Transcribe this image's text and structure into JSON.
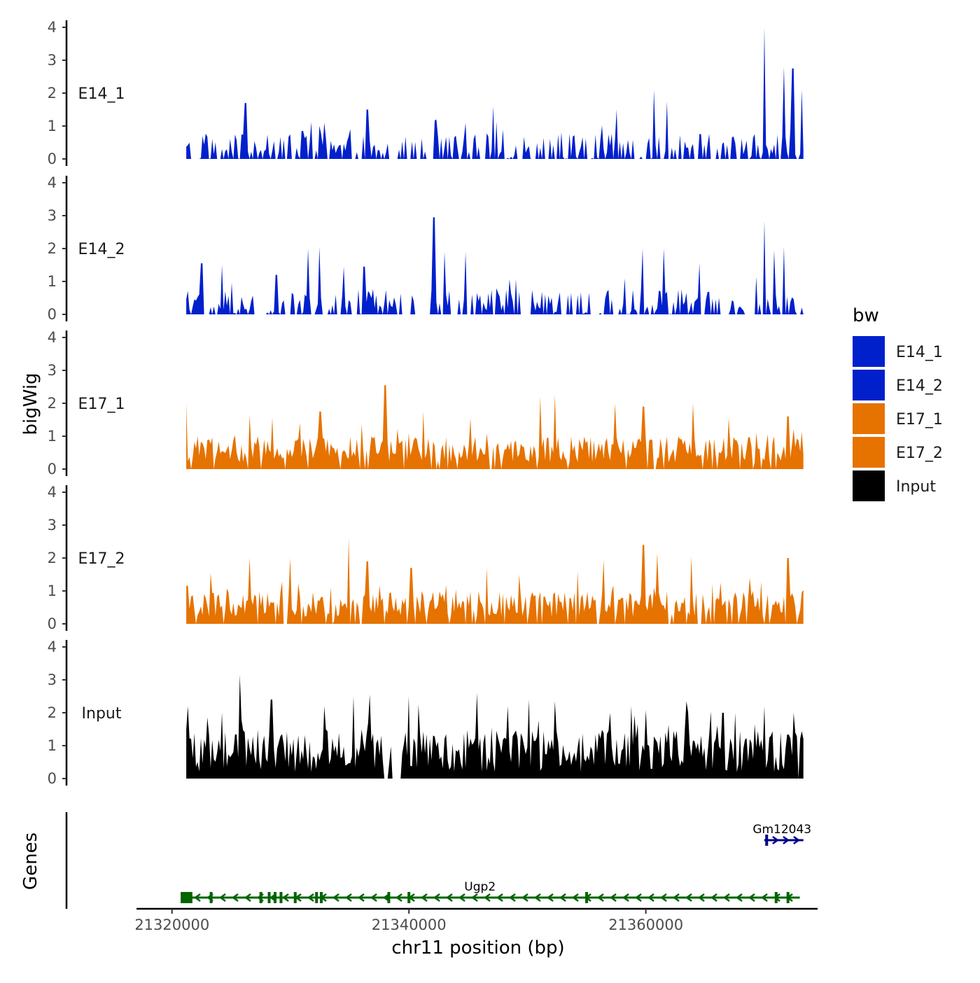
{
  "chart_data": {
    "type": "area",
    "chromosome": "chr11",
    "xlabel": "chr11 position (bp)",
    "ylabel": "bigWig",
    "genes_label": "Genes",
    "xlim": [
      21317000,
      21374500
    ],
    "ylim": [
      0,
      4
    ],
    "x_ticks": [
      21320000,
      21340000,
      21360000
    ],
    "x_tick_labels": [
      "21320000",
      "21340000",
      "21360000"
    ],
    "y_ticks": [
      0,
      1,
      2,
      3,
      4
    ],
    "y_tick_labels": [
      "0",
      "1",
      "2",
      "3",
      "4"
    ],
    "legend": {
      "title": "bw",
      "entries": [
        {
          "label": "E14_1",
          "color": "#0020CC"
        },
        {
          "label": "E14_2",
          "color": "#0020CC"
        },
        {
          "label": "E17_1",
          "color": "#E67300"
        },
        {
          "label": "E17_2",
          "color": "#E67300"
        },
        {
          "label": "Input",
          "color": "#000000"
        }
      ]
    },
    "series": [
      {
        "name": "E14_1",
        "color": "#0020CC",
        "x_start": 21321200,
        "x_end": 21373300,
        "peaks": [
          [
            21326200,
            1.7
          ],
          [
            21331000,
            0.85
          ],
          [
            21332800,
            1.1
          ],
          [
            21336500,
            1.5
          ],
          [
            21342300,
            1.2
          ],
          [
            21347100,
            1.6
          ],
          [
            21357500,
            1.5
          ],
          [
            21360700,
            2.1
          ],
          [
            21361800,
            1.75
          ],
          [
            21370000,
            4.0
          ],
          [
            21371600,
            2.8
          ],
          [
            21372400,
            2.75
          ],
          [
            21373200,
            2.1
          ]
        ],
        "gaps": [
          [
            21321500,
            21321900
          ],
          [
            21330200,
            21330500
          ],
          [
            21338300,
            21338800
          ],
          [
            21340800,
            21341000
          ],
          [
            21351500,
            21351900
          ],
          [
            21359700,
            21360000
          ],
          [
            21365700,
            21366000
          ],
          [
            21367600,
            21368000
          ]
        ]
      },
      {
        "name": "E14_2",
        "color": "#0020CC",
        "x_start": 21321200,
        "x_end": 21373300,
        "peaks": [
          [
            21322500,
            1.55
          ],
          [
            21324200,
            1.5
          ],
          [
            21328800,
            1.2
          ],
          [
            21331500,
            2.0
          ],
          [
            21332400,
            2.05
          ],
          [
            21334500,
            1.45
          ],
          [
            21336200,
            1.45
          ],
          [
            21342100,
            2.95
          ],
          [
            21343000,
            1.9
          ],
          [
            21344800,
            1.9
          ],
          [
            21359700,
            2.0
          ],
          [
            21361500,
            2.0
          ],
          [
            21364500,
            1.55
          ],
          [
            21370000,
            2.85
          ],
          [
            21370800,
            1.95
          ],
          [
            21371600,
            2.05
          ]
        ],
        "gaps": [
          [
            21321500,
            21321700
          ],
          [
            21339300,
            21340000
          ],
          [
            21340800,
            21341500
          ],
          [
            21350200,
            21350400
          ],
          [
            21355600,
            21356100
          ],
          [
            21366400,
            21366900
          ],
          [
            21368800,
            21369200
          ]
        ]
      },
      {
        "name": "E17_1",
        "color": "#E67300",
        "x_start": 21321200,
        "x_end": 21373300,
        "peaks": [
          [
            21321200,
            2.0
          ],
          [
            21326500,
            1.65
          ],
          [
            21330800,
            1.4
          ],
          [
            21332500,
            1.75
          ],
          [
            21338000,
            2.55
          ],
          [
            21341200,
            1.75
          ],
          [
            21345200,
            1.55
          ],
          [
            21351100,
            2.2
          ],
          [
            21352300,
            2.25
          ],
          [
            21357400,
            2.0
          ],
          [
            21359800,
            1.9
          ],
          [
            21364000,
            2.0
          ],
          [
            21367000,
            1.55
          ],
          [
            21372000,
            1.6
          ]
        ],
        "gaps": []
      },
      {
        "name": "E17_2",
        "color": "#E67300",
        "x_start": 21321200,
        "x_end": 21373300,
        "peaks": [
          [
            21323300,
            1.55
          ],
          [
            21326500,
            2.0
          ],
          [
            21330000,
            2.0
          ],
          [
            21334900,
            2.6
          ],
          [
            21336500,
            1.9
          ],
          [
            21340200,
            1.7
          ],
          [
            21346600,
            1.7
          ],
          [
            21349300,
            1.5
          ],
          [
            21354200,
            1.6
          ],
          [
            21356400,
            1.95
          ],
          [
            21359800,
            2.4
          ],
          [
            21361000,
            2.15
          ],
          [
            21363800,
            2.05
          ],
          [
            21368800,
            1.4
          ],
          [
            21372000,
            2.0
          ]
        ],
        "gaps": []
      },
      {
        "name": "Input",
        "color": "#000000",
        "x_start": 21321200,
        "x_end": 21373300,
        "peaks": [
          [
            21321300,
            2.2
          ],
          [
            21325700,
            3.15
          ],
          [
            21328400,
            2.4
          ],
          [
            21332800,
            2.2
          ],
          [
            21335300,
            2.5
          ],
          [
            21336700,
            2.55
          ],
          [
            21340000,
            2.5
          ],
          [
            21340800,
            2.25
          ],
          [
            21345700,
            2.6
          ],
          [
            21348400,
            2.2
          ],
          [
            21350100,
            2.4
          ],
          [
            21352300,
            2.35
          ],
          [
            21357000,
            2.0
          ],
          [
            21358800,
            2.2
          ],
          [
            21363400,
            2.35
          ],
          [
            21366500,
            2.0
          ],
          [
            21370000,
            2.2
          ],
          [
            21372500,
            2.0
          ],
          [
            21373300,
            1.2
          ]
        ],
        "gaps": [
          [
            21337800,
            21338300
          ],
          [
            21338600,
            21339300
          ],
          [
            21372800,
            21373000
          ]
        ]
      }
    ],
    "genes": [
      {
        "name": "Ugp2",
        "strand": "-",
        "start": 21321200,
        "end": 21373000,
        "color": "#006400",
        "label_x": 21346000,
        "exons": [
          21321200,
          21321600,
          21323300,
          21327500,
          21328200,
          21328700,
          21329200,
          21330400,
          21332200,
          21332600,
          21338300,
          21340000,
          21355000,
          21371000,
          21372000
        ]
      },
      {
        "name": "Gm12043",
        "strand": "+",
        "start": 21370000,
        "end": 21373300,
        "color": "#00008B",
        "label_x": 21371500,
        "exons": [
          21370200
        ]
      }
    ]
  }
}
